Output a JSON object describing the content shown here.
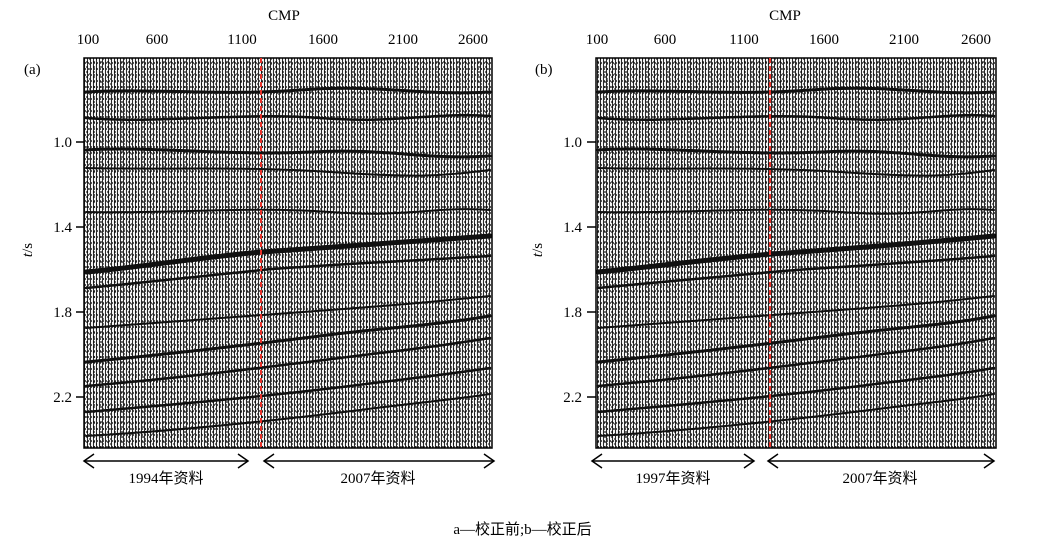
{
  "caption": "a—校正前;b—校正后",
  "axis": {
    "x_title": "CMP",
    "x_ticks": [
      "100",
      "600",
      "1100",
      "1600",
      "2100",
      "2600"
    ],
    "y_title_italic": "t",
    "y_title_rest": "/s",
    "y_ticks": [
      "1.0",
      "1.4",
      "1.8",
      "2.2"
    ]
  },
  "panels": [
    {
      "label": "(a)",
      "left_range_label": "1994年资料",
      "right_range_label": "2007年资料"
    },
    {
      "label": "(b)",
      "left_range_label": "1997年资料",
      "right_range_label": "2007年资料"
    }
  ],
  "colors": {
    "splice_line": "#e8322a",
    "trace_dark": "#111111",
    "trace_light": "#f2f2f2"
  }
}
